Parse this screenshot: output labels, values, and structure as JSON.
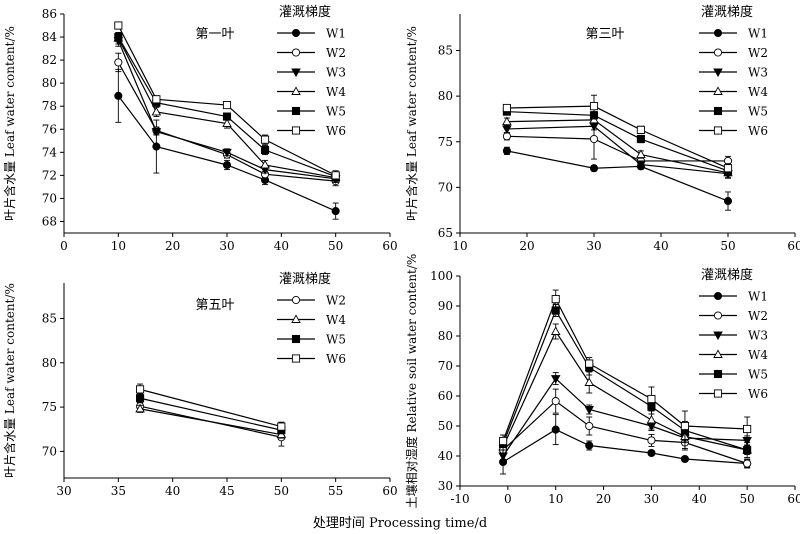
{
  "common": {
    "legend_title": "灌溉梯度",
    "xlabel": "处理时间 Processing time/d"
  },
  "series_styles": {
    "W1": {
      "marker": "circle",
      "fill": "#000000"
    },
    "W2": {
      "marker": "circle",
      "fill": "#ffffff"
    },
    "W3": {
      "marker": "triangle-down",
      "fill": "#000000"
    },
    "W4": {
      "marker": "triangle-up",
      "fill": "#ffffff"
    },
    "W5": {
      "marker": "square",
      "fill": "#000000"
    },
    "W6": {
      "marker": "square",
      "fill": "#ffffff"
    }
  },
  "chart_data": [
    {
      "type": "line",
      "panel": "top-left",
      "title": "第一叶",
      "ylabel": "叶片含水量 Leaf water content/%",
      "xlim": [
        0,
        60
      ],
      "ylim": [
        67,
        86
      ],
      "xticks": [
        0,
        10,
        20,
        30,
        40,
        50,
        60
      ],
      "yticks": [
        68,
        70,
        72,
        74,
        76,
        78,
        80,
        82,
        84,
        86
      ],
      "legend_position": "top-right",
      "x": [
        10,
        17,
        30,
        37,
        50
      ],
      "series": [
        {
          "name": "W1",
          "values": [
            78.9,
            74.5,
            72.9,
            71.6,
            68.9
          ],
          "errors": [
            2.3,
            2.3,
            0.4,
            0.4,
            0.7
          ]
        },
        {
          "name": "W2",
          "values": [
            81.8,
            75.9,
            73.8,
            72.1,
            71.5
          ],
          "errors": [
            0.8,
            0.3,
            0.3,
            0.4,
            0.4
          ]
        },
        {
          "name": "W3",
          "values": [
            83.7,
            75.8,
            74.0,
            72.5,
            71.7
          ],
          "errors": [
            0.5,
            0.3,
            0.3,
            0.3,
            0.3
          ]
        },
        {
          "name": "W4",
          "values": [
            83.9,
            77.5,
            76.5,
            72.9,
            71.8
          ],
          "errors": [
            0.5,
            0.4,
            0.4,
            0.4,
            0.4
          ]
        },
        {
          "name": "W5",
          "values": [
            84.0,
            78.3,
            77.1,
            74.2,
            71.9
          ],
          "errors": [
            0.4,
            0.3,
            0.3,
            0.4,
            0.4
          ]
        },
        {
          "name": "W6",
          "values": [
            85.0,
            78.6,
            78.1,
            75.1,
            72.0
          ],
          "errors": [
            0.3,
            0.3,
            0.3,
            0.4,
            0.4
          ]
        }
      ]
    },
    {
      "type": "line",
      "panel": "top-right",
      "title": "第三叶",
      "ylabel": "叶片含水量 Leaf water content/%",
      "xlim": [
        10,
        60
      ],
      "ylim": [
        65,
        89
      ],
      "xticks": [
        10,
        20,
        30,
        40,
        50,
        60
      ],
      "yticks": [
        65,
        70,
        75,
        80,
        85
      ],
      "legend_position": "top-right",
      "x": [
        17,
        30,
        37,
        50
      ],
      "series": [
        {
          "name": "W1",
          "values": [
            74.0,
            72.1,
            72.3,
            68.5
          ],
          "errors": [
            0.4,
            0.3,
            0.3,
            1.0
          ]
        },
        {
          "name": "W2",
          "values": [
            75.6,
            75.3,
            72.9,
            72.9
          ],
          "errors": [
            0.4,
            2.2,
            0.4,
            0.5
          ]
        },
        {
          "name": "W3",
          "values": [
            76.4,
            76.7,
            72.5,
            71.5
          ],
          "errors": [
            0.4,
            0.4,
            0.4,
            0.5
          ]
        },
        {
          "name": "W4",
          "values": [
            77.2,
            77.4,
            73.6,
            71.6
          ],
          "errors": [
            0.4,
            0.4,
            0.4,
            0.5
          ]
        },
        {
          "name": "W5",
          "values": [
            78.3,
            77.9,
            75.3,
            71.8
          ],
          "errors": [
            0.3,
            0.4,
            0.4,
            0.5
          ]
        },
        {
          "name": "W6",
          "values": [
            78.7,
            78.9,
            76.3,
            72.1
          ],
          "errors": [
            0.3,
            1.2,
            0.4,
            0.5
          ]
        }
      ]
    },
    {
      "type": "line",
      "panel": "bottom-left",
      "title": "第五叶",
      "ylabel": "叶片含水量 Leaf water content/%",
      "xlim": [
        30,
        60
      ],
      "ylim": [
        67,
        89
      ],
      "xticks": [
        30,
        35,
        40,
        45,
        50,
        55,
        60
      ],
      "yticks": [
        70,
        75,
        80,
        85
      ],
      "legend_position": "top-right",
      "x": [
        37,
        50
      ],
      "series": [
        {
          "name": "W2",
          "values": [
            75.1,
            71.6
          ],
          "errors": [
            0.4,
            1.0
          ]
        },
        {
          "name": "W4",
          "values": [
            74.8,
            71.9
          ],
          "errors": [
            0.4,
            0.4
          ]
        },
        {
          "name": "W5",
          "values": [
            76.0,
            72.4
          ],
          "errors": [
            0.5,
            0.4
          ]
        },
        {
          "name": "W6",
          "values": [
            77.0,
            72.8
          ],
          "errors": [
            0.6,
            0.5
          ]
        }
      ]
    },
    {
      "type": "line",
      "panel": "bottom-right",
      "title": "",
      "ylabel": "土壤相对湿度 Relative soil water content/%",
      "xlim": [
        -10,
        60
      ],
      "ylim": [
        30,
        100
      ],
      "xticks": [
        -10,
        0,
        10,
        20,
        30,
        40,
        50,
        60
      ],
      "yticks": [
        30,
        40,
        50,
        60,
        70,
        80,
        90,
        100
      ],
      "legend_position": "top-right",
      "x": [
        -1,
        10,
        17,
        30,
        37,
        50
      ],
      "series": [
        {
          "name": "W1",
          "values": [
            38.0,
            48.8,
            43.5,
            41.0,
            39.0,
            37.5
          ],
          "errors": [
            4.0,
            5.0,
            1.5,
            0.8,
            0.8,
            1.2
          ]
        },
        {
          "name": "W2",
          "values": [
            42.0,
            58.3,
            50.0,
            45.2,
            44.5,
            37.5
          ],
          "errors": [
            3.5,
            4.0,
            3.0,
            2.0,
            2.5,
            1.5
          ]
        },
        {
          "name": "W3",
          "values": [
            40.0,
            65.8,
            55.5,
            50.0,
            46.0,
            45.2
          ],
          "errors": [
            2.0,
            2.0,
            1.5,
            1.5,
            1.5,
            1.5
          ]
        },
        {
          "name": "W4",
          "values": [
            43.0,
            81.5,
            64.5,
            52.0,
            46.5,
            42.0
          ],
          "errors": [
            2.0,
            2.5,
            3.5,
            3.0,
            4.0,
            2.5
          ]
        },
        {
          "name": "W5",
          "values": [
            44.0,
            88.5,
            69.5,
            56.5,
            48.5,
            42.0
          ],
          "errors": [
            2.0,
            2.0,
            2.5,
            2.5,
            3.0,
            1.5
          ]
        },
        {
          "name": "W6",
          "values": [
            45.0,
            92.3,
            70.8,
            59.0,
            50.0,
            49.0
          ],
          "errors": [
            2.0,
            3.0,
            2.0,
            4.0,
            5.0,
            4.0
          ]
        }
      ]
    }
  ]
}
